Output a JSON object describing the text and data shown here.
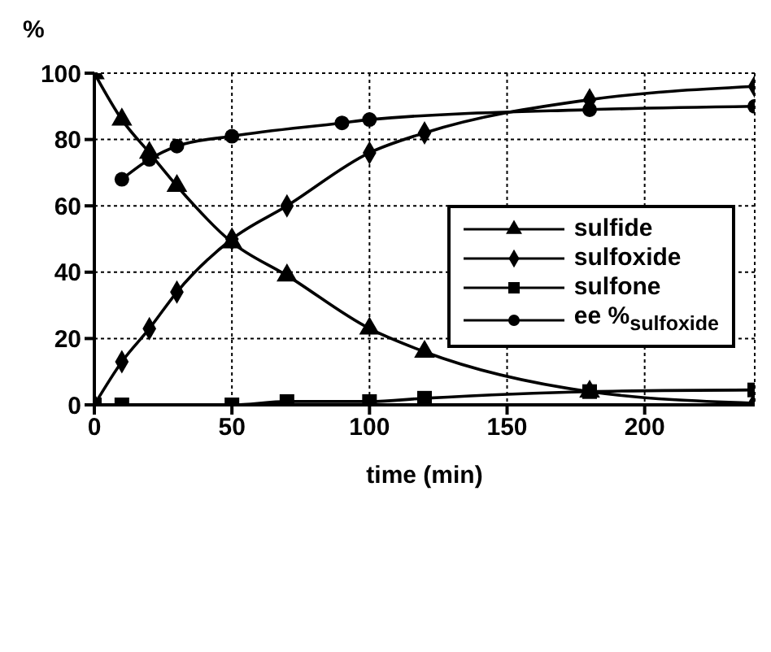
{
  "chart_data": {
    "type": "line",
    "xlabel": "time (min)",
    "ylabel": "%",
    "xlim": [
      0,
      240
    ],
    "xticks": [
      0,
      50,
      100,
      150,
      200
    ],
    "ylim": [
      0,
      100
    ],
    "yticks": [
      0,
      20,
      40,
      60,
      80,
      100
    ],
    "grid": true,
    "line_style": "solid",
    "legend": "right",
    "series": [
      {
        "name": "sulfide",
        "color": "#000000",
        "marker": "triangle",
        "x": [
          0,
          10,
          20,
          30,
          50,
          70,
          100,
          120,
          180,
          240
        ],
        "values": [
          100,
          86,
          76,
          66,
          49,
          39,
          23,
          16,
          4,
          0.5
        ]
      },
      {
        "name": "sulfoxide",
        "color": "#000000",
        "marker": "diamond",
        "x": [
          0,
          10,
          20,
          30,
          50,
          70,
          100,
          120,
          180,
          240
        ],
        "values": [
          0,
          13,
          23,
          34,
          50,
          60,
          76,
          82,
          92,
          96
        ]
      },
      {
        "name": "sulfone",
        "color": "#000000",
        "marker": "square",
        "x": [
          0,
          10,
          50,
          70,
          100,
          120,
          180,
          240
        ],
        "values": [
          0,
          0,
          0,
          1,
          1,
          2,
          4,
          4.5
        ]
      },
      {
        "name": "ee %$_{sulfoxide}$",
        "color": "#000000",
        "marker": "circle",
        "x": [
          10,
          20,
          30,
          50,
          90,
          100,
          180,
          240
        ],
        "values": [
          68,
          74,
          78,
          81,
          85,
          86,
          89,
          90
        ]
      }
    ]
  }
}
